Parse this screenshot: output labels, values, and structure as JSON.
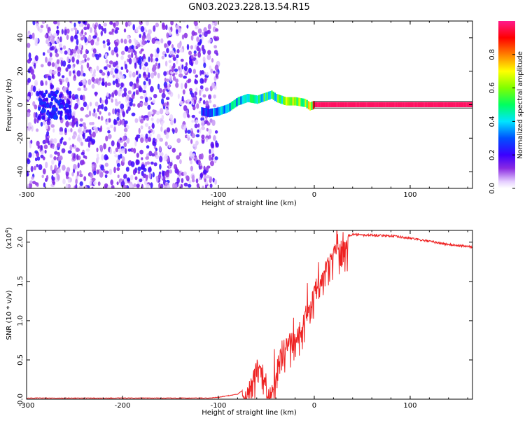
{
  "title": "GN03.2023.228.13.54.R15",
  "chart_data": [
    {
      "type": "heatmap",
      "xlabel": "Height of straight line (km)",
      "ylabel": "Frequency (Hz)",
      "xlim": [
        -300,
        165
      ],
      "ylim": [
        -50,
        50
      ],
      "xticks": [
        -300,
        -200,
        -100,
        0,
        100
      ],
      "yticks": [
        -40,
        -20,
        0,
        20,
        40
      ],
      "colorbar": {
        "label": "Normalized spectral amplitude",
        "range": [
          0.0,
          1.0
        ],
        "ticks": [
          "0.0",
          "0.2",
          "0.4",
          "0.6",
          "0.8"
        ]
      },
      "noise_region_x": [
        -300,
        -100
      ],
      "ridge": {
        "x": [
          -118,
          -110,
          -100,
          -90,
          -80,
          -70,
          -60,
          -50,
          -45,
          -40,
          -30,
          -20,
          -10,
          -5,
          0,
          50,
          100,
          165
        ],
        "y": [
          -4,
          -5,
          -4,
          -2,
          2,
          4,
          3,
          5,
          6,
          4,
          2,
          2,
          1,
          -1,
          0,
          0,
          0,
          0
        ],
        "amplitude": [
          0.35,
          0.45,
          0.5,
          0.55,
          0.55,
          0.6,
          0.6,
          0.7,
          0.65,
          0.8,
          0.85,
          0.9,
          0.95,
          0.95,
          1.0,
          1.0,
          1.0,
          1.0
        ]
      }
    },
    {
      "type": "line",
      "xlabel": "Height of straight line (km)",
      "ylabel": "SNR (10 * v/v)",
      "scale_label": "(x10",
      "scale_exponent": "4",
      "scale_close": ")",
      "xlim": [
        -300,
        165
      ],
      "ylim": [
        0.0,
        2.15
      ],
      "xticks": [
        -300,
        -200,
        -100,
        0,
        100
      ],
      "yticks": [
        "0.0",
        "0.5",
        "1.0",
        "1.5",
        "2.0"
      ],
      "color": "#ee2222",
      "series": [
        {
          "x": [
            -300,
            -200,
            -110,
            -100,
            -80,
            -70,
            -65,
            -60,
            -55,
            -50,
            -48,
            -45,
            -40,
            -35,
            -30,
            -25,
            -20,
            -15,
            -10,
            -5,
            0,
            5,
            10,
            15,
            20,
            25,
            30,
            40,
            50,
            60,
            80,
            100,
            120,
            140,
            165
          ],
          "y": [
            0.01,
            0.01,
            0.01,
            0.02,
            0.06,
            0.15,
            0.35,
            0.5,
            0.55,
            0.2,
            0.15,
            0.15,
            0.5,
            0.7,
            0.8,
            0.85,
            0.9,
            1.0,
            1.1,
            1.3,
            1.5,
            1.62,
            1.72,
            1.82,
            1.95,
            2.02,
            2.06,
            2.1,
            2.09,
            2.09,
            2.08,
            2.05,
            2.01,
            1.97,
            1.94
          ]
        }
      ]
    }
  ]
}
